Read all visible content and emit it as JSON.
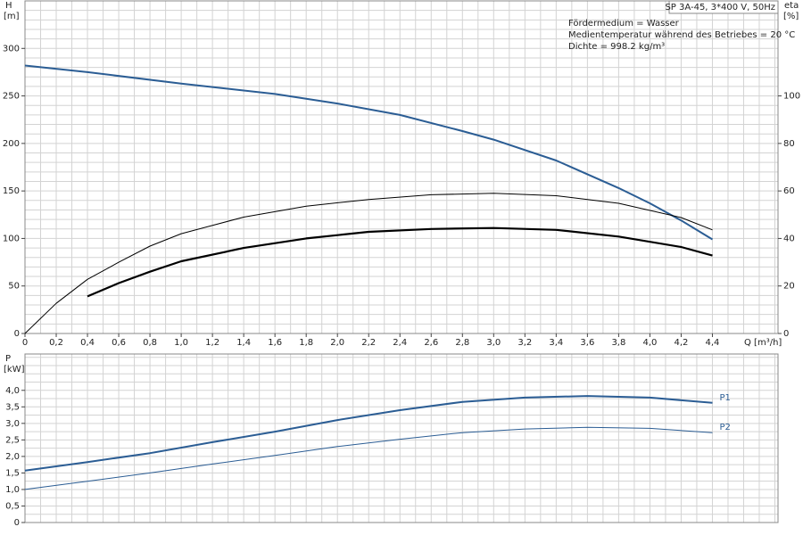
{
  "chart_data": [
    {
      "type": "line",
      "y_label": "H",
      "y_unit": "[m]",
      "y2_label": "eta",
      "y2_unit": "[%]",
      "x_label": "Q [m³/h]",
      "info_box": "SP 3A-45, 3*400 V, 50Hz",
      "annotations": [
        "Fördermedium = Wasser",
        "Medientemperatur während des Betriebes = 20 °C",
        "Dichte = 998.2 kg/m³"
      ],
      "xlim": [
        0,
        4.82
      ],
      "ylim": [
        0,
        350
      ],
      "y2lim": [
        0,
        140
      ],
      "xminor": 0.1,
      "yminor": 10,
      "xticks": [
        0,
        {
          "value": 0.2,
          "label": "0,2"
        },
        {
          "value": 0.4,
          "label": "0,4"
        },
        {
          "value": 0.6,
          "label": "0,6"
        },
        {
          "value": 0.8,
          "label": "0,8"
        },
        {
          "value": 1,
          "label": "1,0"
        },
        {
          "value": 1.2,
          "label": "1,2"
        },
        {
          "value": 1.4,
          "label": "1,4"
        },
        {
          "value": 1.6,
          "label": "1,6"
        },
        {
          "value": 1.8,
          "label": "1,8"
        },
        {
          "value": 2,
          "label": "2,0"
        },
        {
          "value": 2.2,
          "label": "2,2"
        },
        {
          "value": 2.4,
          "label": "2,4"
        },
        {
          "value": 2.6,
          "label": "2,6"
        },
        {
          "value": 2.8,
          "label": "2,8"
        },
        {
          "value": 3,
          "label": "3,0"
        },
        {
          "value": 3.2,
          "label": "3,2"
        },
        {
          "value": 3.4,
          "label": "3,4"
        },
        {
          "value": 3.6,
          "label": "3,6"
        },
        {
          "value": 3.8,
          "label": "3,8"
        },
        {
          "value": 4,
          "label": "4,0"
        },
        {
          "value": 4.2,
          "label": "4,2"
        },
        {
          "value": 4.4,
          "label": "4,4"
        }
      ],
      "yticks": [
        0,
        50,
        100,
        150,
        200,
        250,
        300
      ],
      "y2ticks": [
        0,
        20,
        40,
        60,
        80,
        100
      ],
      "series": [
        {
          "color": "#2b5d94",
          "width": 2,
          "x": [
            0,
            0.4,
            1.0,
            1.6,
            2.0,
            2.4,
            2.8,
            3.0,
            3.4,
            3.8,
            4.0,
            4.2,
            4.4
          ],
          "values": [
            282,
            275,
            263,
            252,
            242,
            230,
            213,
            204,
            182,
            153,
            137,
            119,
            99
          ]
        },
        {
          "color": "#000000",
          "width": 1,
          "axis": "y2",
          "x": [
            0,
            0.2,
            0.4,
            0.6,
            0.8,
            1.0,
            1.4,
            1.8,
            2.2,
            2.6,
            3.0,
            3.4,
            3.8,
            4.2,
            4.4
          ],
          "values": [
            0,
            12.7,
            22.8,
            30,
            36.8,
            42,
            49,
            53.6,
            56.4,
            58.4,
            59,
            58,
            54.8,
            48.8,
            43.6
          ]
        },
        {
          "color": "#000000",
          "width": 2.2,
          "axis": "y2",
          "x": [
            0.4,
            0.6,
            0.8,
            1.0,
            1.4,
            1.8,
            2.2,
            2.6,
            3.0,
            3.4,
            3.8,
            4.2,
            4.4
          ],
          "values": [
            15.6,
            21.2,
            26,
            30.4,
            36,
            40,
            42.8,
            44,
            44.4,
            43.6,
            40.8,
            36.4,
            32.8
          ]
        }
      ]
    },
    {
      "type": "line",
      "y_label": "P",
      "y_unit": "[kW]",
      "xlim": [
        0,
        4.82
      ],
      "ylim": [
        0,
        5.1
      ],
      "xminor": 0.1,
      "yminor": 0.25,
      "yticks": [
        0,
        {
          "value": 0.5,
          "label": "0,5"
        },
        {
          "value": 1,
          "label": "1,0"
        },
        {
          "value": 1.5,
          "label": "1,5"
        },
        {
          "value": 2,
          "label": "2,0"
        },
        {
          "value": 2.5,
          "label": "2,5"
        },
        {
          "value": 3,
          "label": "3,0"
        },
        {
          "value": 3.5,
          "label": "3,5"
        },
        {
          "value": 4,
          "label": "4,0"
        }
      ],
      "series": [
        {
          "name": "P1",
          "color": "#2b5d94",
          "width": 2,
          "x": [
            0,
            0.4,
            0.8,
            1.2,
            1.6,
            2.0,
            2.4,
            2.8,
            3.2,
            3.6,
            4.0,
            4.4
          ],
          "values": [
            1.57,
            1.83,
            2.1,
            2.43,
            2.75,
            3.1,
            3.4,
            3.65,
            3.78,
            3.83,
            3.78,
            3.62
          ]
        },
        {
          "name": "P2",
          "color": "#2b5d94",
          "width": 1,
          "x": [
            0,
            0.4,
            0.8,
            1.2,
            1.6,
            2.0,
            2.4,
            2.8,
            3.2,
            3.6,
            4.0,
            4.4
          ],
          "values": [
            1.0,
            1.25,
            1.5,
            1.77,
            2.03,
            2.3,
            2.52,
            2.72,
            2.83,
            2.88,
            2.85,
            2.72
          ]
        }
      ]
    }
  ]
}
